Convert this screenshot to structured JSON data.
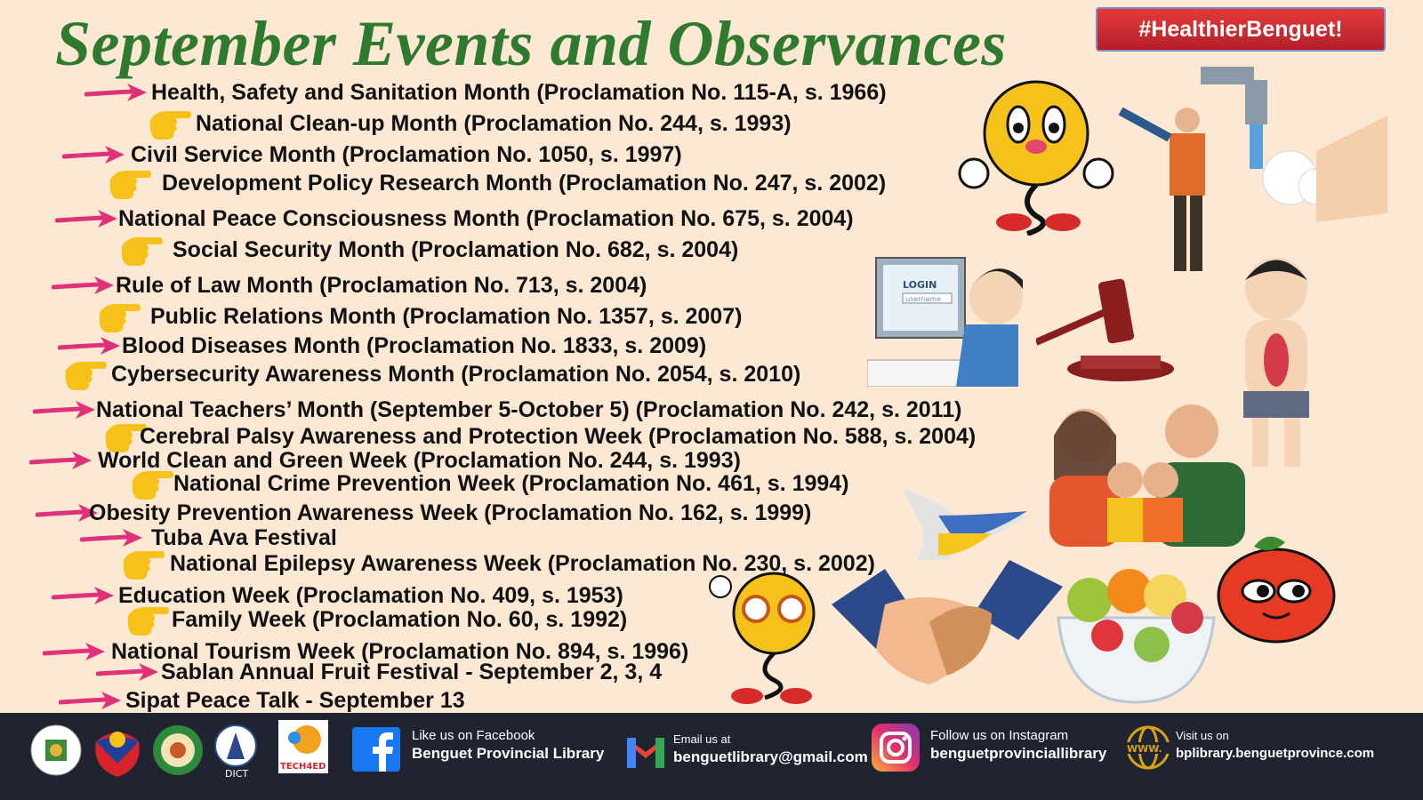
{
  "title": "September Events and Observances",
  "hashtag": "#HealthierBenguet!",
  "colors": {
    "title": "#2f7a2e",
    "arrow": "#e0327a",
    "hand": "#f6c21a",
    "footer_bg": "#1f2430",
    "background": "#fde9d3"
  },
  "items": [
    {
      "bullet": "arrow-icon",
      "text": "Health, Safety and Sanitation Month (Proclamation No. 115-A, s. 1966)"
    },
    {
      "bullet": "pointing-hand-icon",
      "text": "National Clean-up Month (Proclamation No. 244, s. 1993)"
    },
    {
      "bullet": "arrow-icon",
      "text": "Civil Service Month (Proclamation No. 1050, s. 1997)"
    },
    {
      "bullet": "pointing-hand-icon",
      "text": "Development Policy Research Month (Proclamation No. 247, s. 2002)"
    },
    {
      "bullet": "arrow-icon",
      "text": "National Peace Consciousness Month (Proclamation No. 675, s. 2004)"
    },
    {
      "bullet": "pointing-hand-icon",
      "text": "Social Security Month (Proclamation No. 682, s. 2004)"
    },
    {
      "bullet": "arrow-icon",
      "text": "Rule of Law Month (Proclamation No. 713, s. 2004)"
    },
    {
      "bullet": "pointing-hand-icon",
      "text": "Public Relations Month (Proclamation No. 1357, s. 2007)"
    },
    {
      "bullet": "arrow-icon",
      "text": "Blood Diseases Month (Proclamation No. 1833, s. 2009)"
    },
    {
      "bullet": "pointing-hand-icon",
      "text": "Cybersecurity Awareness Month (Proclamation No. 2054, s. 2010)"
    },
    {
      "bullet": "arrow-icon",
      "text": "National Teachers’ Month (September 5-October 5) (Proclamation No. 242, s. 2011)"
    },
    {
      "bullet": "pointing-hand-icon",
      "text": "Cerebral Palsy Awareness and Protection Week (Proclamation No. 588, s. 2004)"
    },
    {
      "bullet": "arrow-icon",
      "text": "World Clean and Green Week (Proclamation No. 244, s. 1993)"
    },
    {
      "bullet": "pointing-hand-icon",
      "text": "National Crime Prevention Week (Proclamation No. 461, s. 1994)"
    },
    {
      "bullet": "arrow-icon",
      "text": "Obesity Prevention Awareness Week (Proclamation No. 162, s. 1999)"
    },
    {
      "bullet": "arrow-icon",
      "text": "Tuba Ava Festival"
    },
    {
      "bullet": "pointing-hand-icon",
      "text": "National Epilepsy Awareness Week (Proclamation No. 230, s. 2002)"
    },
    {
      "bullet": "arrow-icon",
      "text": "Education Week (Proclamation No. 409, s. 1953)"
    },
    {
      "bullet": "pointing-hand-icon",
      "text": "Family Week (Proclamation No. 60, s. 1992)"
    },
    {
      "bullet": "arrow-icon",
      "text": "National Tourism Week (Proclamation No. 894, s. 1996)"
    },
    {
      "bullet": "arrow-icon",
      "text": "Sablan Annual Fruit Festival - September 2, 3, 4"
    },
    {
      "bullet": "arrow-icon",
      "text": "Sipat Peace Talk - September 13"
    }
  ],
  "illustration": {
    "login_label": "LOGIN",
    "username_placeholder": "username"
  },
  "footer": {
    "logos": [
      "Province of Benguet Official Seal",
      "Bagong Pilipinas",
      "Benguet Provincial Library",
      "DICT",
      "TECH4ED"
    ],
    "dict_label": "DICT",
    "tech4ed_label": "TECH4ED",
    "facebook": {
      "line1": "Like us on Facebook",
      "line2": "Benguet Provincial Library"
    },
    "email": {
      "line1": "Email us at",
      "line2": "benguetlibrary@gmail.com"
    },
    "instagram": {
      "line1": "Follow us on Instagram",
      "line2": "benguetprovinciallibrary"
    },
    "website": {
      "line1": "Visit us on",
      "line2": "bplibrary.benguetprovince.com",
      "icon_label": "WWW."
    }
  }
}
